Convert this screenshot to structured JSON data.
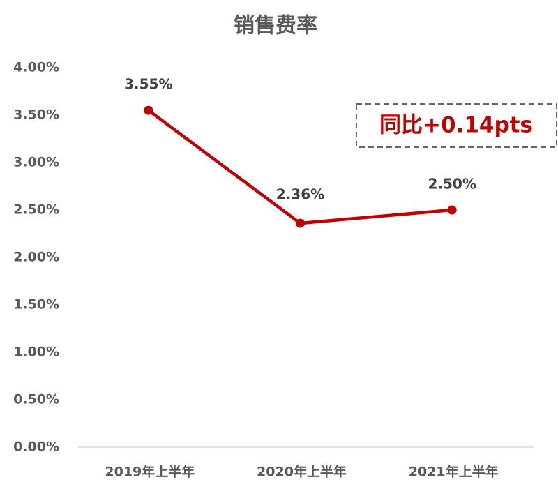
{
  "chart_data": {
    "type": "line",
    "title": "销售费率",
    "categories": [
      "2019年上半年",
      "2020年上半年",
      "2021年上半年"
    ],
    "series": [
      {
        "name": "销售费率",
        "color": "#c00000",
        "values": [
          3.55,
          2.36,
          2.5
        ],
        "value_labels": [
          "3.55%",
          "2.36%",
          "2.50%"
        ]
      }
    ],
    "ylim": [
      0,
      4
    ],
    "yticks": [
      {
        "value": 0,
        "label": "0.00%"
      },
      {
        "value": 0.5,
        "label": "0.50%"
      },
      {
        "value": 1,
        "label": "1.00%"
      },
      {
        "value": 1.5,
        "label": "1.50%"
      },
      {
        "value": 2,
        "label": "2.00%"
      },
      {
        "value": 2.5,
        "label": "2.50%"
      },
      {
        "value": 3,
        "label": "3.00%"
      },
      {
        "value": 3.5,
        "label": "3.50%"
      },
      {
        "value": 4,
        "label": "4.00%"
      }
    ],
    "annotation": "同比+0.14pts",
    "legend": false,
    "grid": false
  }
}
